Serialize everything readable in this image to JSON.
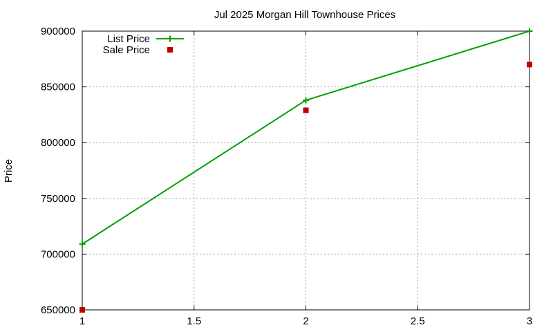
{
  "chart_data": {
    "type": "line",
    "title": "Jul 2025 Morgan Hill Townhouse Prices",
    "xlabel": "",
    "ylabel": "Price",
    "xlim": [
      1,
      3
    ],
    "ylim": [
      650000,
      900000
    ],
    "x_ticks": [
      {
        "value": 1,
        "label": "1"
      },
      {
        "value": 1.5,
        "label": "1.5"
      },
      {
        "value": 2,
        "label": "2"
      },
      {
        "value": 2.5,
        "label": "2.5"
      },
      {
        "value": 3,
        "label": "3"
      }
    ],
    "y_ticks": [
      {
        "value": 650000,
        "label": "650000"
      },
      {
        "value": 700000,
        "label": "700000"
      },
      {
        "value": 750000,
        "label": "750000"
      },
      {
        "value": 800000,
        "label": "800000"
      },
      {
        "value": 850000,
        "label": "850000"
      },
      {
        "value": 900000,
        "label": "900000"
      }
    ],
    "grid": true,
    "legend_position": "top-left",
    "series": [
      {
        "name": "List Price",
        "style": "linespoints",
        "marker": "plus",
        "color": "#00a000",
        "x": [
          1,
          2,
          3
        ],
        "y": [
          709000,
          838000,
          900000
        ]
      },
      {
        "name": "Sale Price",
        "style": "points",
        "marker": "square",
        "color": "#c00000",
        "x": [
          1,
          2,
          3
        ],
        "y": [
          650000,
          829000,
          870000
        ]
      }
    ]
  }
}
